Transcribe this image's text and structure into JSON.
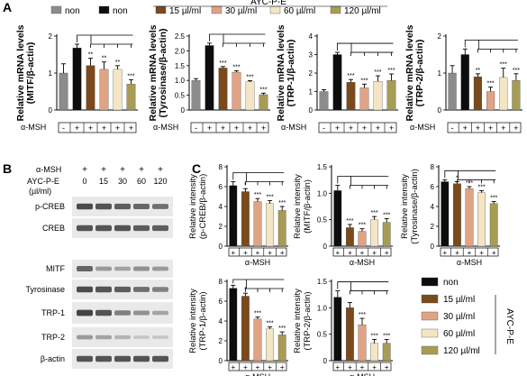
{
  "colors": {
    "non_gray": "#8c8c8c",
    "non_black": "#0d0d0d",
    "c15": "#7a4a1c",
    "c30": "#e0a383",
    "c60": "#f4e6c4",
    "c120": "#a89c55",
    "blot_bg": "#e9e9e9",
    "band": "#3a3a3a"
  },
  "panel_labels": {
    "a": "A",
    "b": "B",
    "c": "C"
  },
  "legend_top": {
    "group_label": "AYC-P-E",
    "items": [
      {
        "label": "non",
        "color_key": "non_gray"
      },
      {
        "label": "non",
        "color_key": "non_black"
      },
      {
        "label": "15 µl/ml",
        "color_key": "c15"
      },
      {
        "label": "30 µl/ml",
        "color_key": "c30"
      },
      {
        "label": "60 µl/ml",
        "color_key": "c60"
      },
      {
        "label": "120 µl/ml",
        "color_key": "c120"
      }
    ]
  },
  "msh_label": "α-MSH",
  "msh_signs": [
    "-",
    "+",
    "+",
    "+",
    "+",
    "+"
  ],
  "chart_data": [
    {
      "type": "bar",
      "panel": "A1",
      "ylabel": "Relative mRNA levels",
      "ylabel2": "(MITF/β-actin)",
      "ylim": [
        0,
        2
      ],
      "yticks": [
        "0",
        "1",
        "2"
      ],
      "values": [
        1.0,
        1.68,
        1.2,
        1.1,
        1.1,
        0.7
      ],
      "errors": [
        0.25,
        0.1,
        0.2,
        0.2,
        0.1,
        0.12
      ],
      "stars": [
        "",
        "",
        "**",
        "**",
        "**",
        "***"
      ]
    },
    {
      "type": "bar",
      "panel": "A2",
      "ylabel": "Relative mRNA levels",
      "ylabel2": "(Tyrosinase/β-actin)",
      "ylim": [
        0,
        2.5
      ],
      "yticks": [
        "0",
        "0.5",
        "1.0",
        "1.5",
        "2.0",
        "2.5"
      ],
      "values": [
        1.0,
        2.18,
        1.42,
        1.28,
        0.95,
        0.52
      ],
      "errors": [
        0.06,
        0.08,
        0.05,
        0.05,
        0.04,
        0.05
      ],
      "stars": [
        "",
        "",
        "***",
        "***",
        "***",
        "***"
      ]
    },
    {
      "type": "bar",
      "panel": "A3",
      "ylabel": "Relative mRNA levels",
      "ylabel2": "(TRP-1/β-actin)",
      "ylim": [
        0,
        4
      ],
      "yticks": [
        "0",
        "1",
        "2",
        "3",
        "4"
      ],
      "values": [
        1.0,
        3.0,
        1.5,
        1.2,
        1.55,
        1.6
      ],
      "errors": [
        0.1,
        0.12,
        0.15,
        0.2,
        0.3,
        0.35
      ],
      "stars": [
        "",
        "",
        "***",
        "***",
        "***",
        "***"
      ]
    },
    {
      "type": "bar",
      "panel": "A4",
      "ylabel": "Relative mRNA levels",
      "ylabel2": "(TRP-2/β-actin)",
      "ylim": [
        0,
        2
      ],
      "yticks": [
        "0",
        "1",
        "2"
      ],
      "values": [
        1.0,
        1.5,
        0.9,
        0.5,
        0.88,
        0.8
      ],
      "errors": [
        0.2,
        0.15,
        0.08,
        0.12,
        0.25,
        0.18
      ],
      "stars": [
        "",
        "",
        "**",
        "***",
        "***",
        "***"
      ]
    },
    {
      "type": "bar",
      "panel": "C1",
      "ylabel": "Relative intensity",
      "ylabel2": "(p-CREB/β-actin)",
      "ylim": [
        0,
        8
      ],
      "yticks": [
        "0",
        "2",
        "4",
        "6",
        "8"
      ],
      "values": [
        6.1,
        5.5,
        4.5,
        4.3,
        3.6
      ],
      "errors": [
        0.4,
        0.3,
        0.3,
        0.3,
        0.4
      ],
      "stars": [
        "",
        "*",
        "***",
        "***",
        "***"
      ]
    },
    {
      "type": "bar",
      "panel": "C2",
      "ylabel": "Relative intensity",
      "ylabel2": "(MITF/β-actin)",
      "ylim": [
        0,
        1.5
      ],
      "yticks": [
        "0",
        "0.5",
        "1.0",
        "1.5"
      ],
      "values": [
        1.05,
        0.35,
        0.28,
        0.5,
        0.45
      ],
      "errors": [
        0.1,
        0.06,
        0.05,
        0.06,
        0.07
      ],
      "stars": [
        "",
        "***",
        "***",
        "***",
        "***"
      ]
    },
    {
      "type": "bar",
      "panel": "C3",
      "ylabel": "Relative intensity",
      "ylabel2": "(Tyrosinase/β-actin)",
      "ylim": [
        0,
        8
      ],
      "yticks": [
        "0",
        "2",
        "4",
        "6",
        "8"
      ],
      "values": [
        6.5,
        6.3,
        5.8,
        5.4,
        4.3
      ],
      "errors": [
        0.2,
        0.2,
        0.2,
        0.2,
        0.2
      ],
      "stars": [
        "",
        "*",
        "***",
        "***",
        "***"
      ]
    },
    {
      "type": "bar",
      "panel": "C4",
      "ylabel": "Relative intensity",
      "ylabel2": "(TRP-1/β-actin)",
      "ylim": [
        0,
        8
      ],
      "yticks": [
        "0",
        "2",
        "4",
        "6",
        "8"
      ],
      "values": [
        7.3,
        6.5,
        4.2,
        3.2,
        2.6
      ],
      "errors": [
        0.3,
        0.3,
        0.2,
        0.2,
        0.3
      ],
      "stars": [
        "",
        "*",
        "***",
        "***",
        "***"
      ]
    },
    {
      "type": "bar",
      "panel": "C5",
      "ylabel": "Relative intensity",
      "ylabel2": "(TRP-2/β-actin)",
      "ylim": [
        0,
        1.5
      ],
      "yticks": [
        "0",
        "0.5",
        "1.0",
        "1.5"
      ],
      "values": [
        1.2,
        1.0,
        0.68,
        0.33,
        0.33
      ],
      "errors": [
        0.12,
        0.1,
        0.12,
        0.07,
        0.07
      ],
      "stars": [
        "",
        "",
        "***",
        "***",
        "***"
      ]
    }
  ],
  "blot": {
    "msh_label": "α-MSH",
    "msh_signs": [
      "+",
      "+",
      "+",
      "+",
      "+"
    ],
    "ayc_label": "AYC-P-E",
    "unit_label": "(µl/ml)",
    "doses": [
      "0",
      "15",
      "30",
      "60",
      "120"
    ],
    "rows": [
      {
        "label": "p-CREB",
        "intensities": [
          0.9,
          0.85,
          0.8,
          0.75,
          0.7
        ]
      },
      {
        "label": "CREB",
        "intensities": [
          0.85,
          0.85,
          0.85,
          0.8,
          0.8
        ]
      },
      {
        "label": "MITF",
        "intensities": [
          0.75,
          0.45,
          0.4,
          0.5,
          0.45
        ]
      },
      {
        "label": "Tyrosinase",
        "intensities": [
          0.9,
          0.85,
          0.8,
          0.7,
          0.6
        ]
      },
      {
        "label": "TRP-1",
        "intensities": [
          0.95,
          0.85,
          0.6,
          0.5,
          0.4
        ]
      },
      {
        "label": "TRP-2",
        "intensities": [
          0.45,
          0.4,
          0.3,
          0.2,
          0.2
        ]
      },
      {
        "label": "β-actin",
        "intensities": [
          0.85,
          0.85,
          0.85,
          0.85,
          0.85
        ]
      }
    ]
  },
  "legend_c": {
    "group_label": "AYC-P-E",
    "items": [
      {
        "label": "non",
        "color_key": "non_black"
      },
      {
        "label": "15 µl/ml",
        "color_key": "c15"
      },
      {
        "label": "30 µl/ml",
        "color_key": "c30"
      },
      {
        "label": "60 µl/ml",
        "color_key": "c60"
      },
      {
        "label": "120 µl/ml",
        "color_key": "c120"
      }
    ]
  }
}
